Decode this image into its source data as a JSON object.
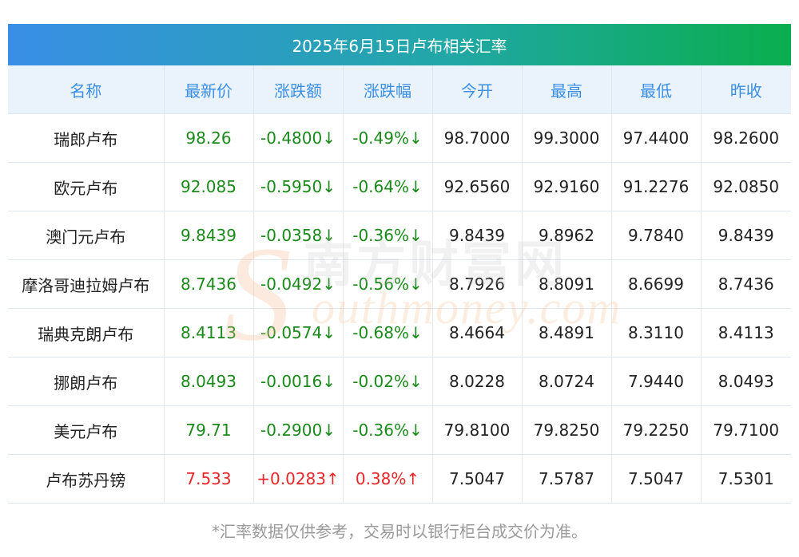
{
  "title": "2025年6月15日卢布相关汇率",
  "headers": [
    "名称",
    "最新价",
    "涨跌额",
    "涨跌幅",
    "今开",
    "最高",
    "最低",
    "昨收"
  ],
  "rows": [
    {
      "name": "瑞郎卢布",
      "latest": "98.26",
      "change": "-0.4800↓",
      "pct": "-0.49%↓",
      "open": "98.7000",
      "high": "99.3000",
      "low": "97.4400",
      "prev": "98.2600",
      "dir": "down"
    },
    {
      "name": "欧元卢布",
      "latest": "92.085",
      "change": "-0.5950↓",
      "pct": "-0.64%↓",
      "open": "92.6560",
      "high": "92.9160",
      "low": "91.2276",
      "prev": "92.0850",
      "dir": "down"
    },
    {
      "name": "澳门元卢布",
      "latest": "9.8439",
      "change": "-0.0358↓",
      "pct": "-0.36%↓",
      "open": "9.8439",
      "high": "9.8962",
      "low": "9.7840",
      "prev": "9.8439",
      "dir": "down"
    },
    {
      "name": "摩洛哥迪拉姆卢布",
      "latest": "8.7436",
      "change": "-0.0492↓",
      "pct": "-0.56%↓",
      "open": "8.7926",
      "high": "8.8091",
      "low": "8.6699",
      "prev": "8.7436",
      "dir": "down"
    },
    {
      "name": "瑞典克朗卢布",
      "latest": "8.4113",
      "change": "-0.0574↓",
      "pct": "-0.68%↓",
      "open": "8.4664",
      "high": "8.4891",
      "low": "8.3110",
      "prev": "8.4113",
      "dir": "down"
    },
    {
      "name": "挪朗卢布",
      "latest": "8.0493",
      "change": "-0.0016↓",
      "pct": "-0.02%↓",
      "open": "8.0228",
      "high": "8.0724",
      "low": "7.9440",
      "prev": "8.0493",
      "dir": "down"
    },
    {
      "name": "美元卢布",
      "latest": "79.71",
      "change": "-0.2900↓",
      "pct": "-0.36%↓",
      "open": "79.8100",
      "high": "79.8250",
      "low": "79.2250",
      "prev": "79.7100",
      "dir": "down"
    },
    {
      "name": "卢布苏丹镑",
      "latest": "7.533",
      "change": "+0.0283↑",
      "pct": "0.38%↑",
      "open": "7.5047",
      "high": "7.5787",
      "low": "7.5047",
      "prev": "7.5301",
      "dir": "up"
    }
  ],
  "watermark": {
    "cn": "南方财富网",
    "en": "outhmoney.com",
    "initial": "S"
  },
  "footer": "*汇率数据仅供参考，交易时以银行柜台成交价为准。",
  "colors": {
    "down": "#1a8a1a",
    "up": "#e8262a",
    "header_text": "#3a8ee6",
    "header_bg": "#eaf3fc",
    "title_start": "#3a8ee6",
    "title_end": "#0aae4e"
  }
}
